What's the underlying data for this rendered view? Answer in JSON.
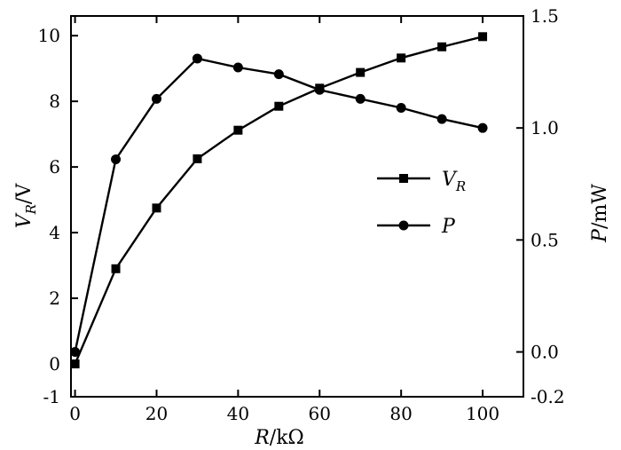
{
  "chart_data": {
    "type": "line",
    "xlabel": {
      "var": "R",
      "unit": "/kΩ"
    },
    "ylabel_left": {
      "var": "V",
      "sub": "R",
      "unit": "/V"
    },
    "ylabel_right": {
      "var": "P",
      "unit": "/mW"
    },
    "xlim": [
      -1,
      110
    ],
    "ylim_left": [
      -1,
      10.6
    ],
    "ylim_right": [
      -0.2,
      1.5
    ],
    "x_ticks": [
      0,
      20,
      40,
      60,
      80,
      100
    ],
    "y_left_ticks": [
      -1,
      0,
      2,
      4,
      6,
      8,
      10
    ],
    "y_right_ticks": [
      -0.2,
      0.0,
      0.5,
      1.0,
      1.5
    ],
    "y_right_tick_labels": [
      "-0.2",
      "0.0",
      "0.5",
      "1.0",
      "1.5"
    ],
    "grid": false,
    "legend_position": "center-right",
    "series": [
      {
        "name": "V_R",
        "legend_var": "V",
        "legend_sub": "R",
        "axis": "left",
        "marker": "square",
        "x": [
          0,
          10,
          20,
          30,
          40,
          50,
          60,
          70,
          80,
          90,
          100
        ],
        "values": [
          0.0,
          2.9,
          4.75,
          6.25,
          7.12,
          7.85,
          8.4,
          8.88,
          9.32,
          9.66,
          9.97
        ]
      },
      {
        "name": "P",
        "legend_var": "P",
        "legend_sub": "",
        "axis": "right",
        "marker": "circle",
        "x": [
          0,
          10,
          20,
          30,
          40,
          50,
          60,
          70,
          80,
          90,
          100
        ],
        "values": [
          0.0,
          0.86,
          1.13,
          1.31,
          1.27,
          1.24,
          1.17,
          1.13,
          1.09,
          1.04,
          1.0
        ]
      }
    ]
  }
}
